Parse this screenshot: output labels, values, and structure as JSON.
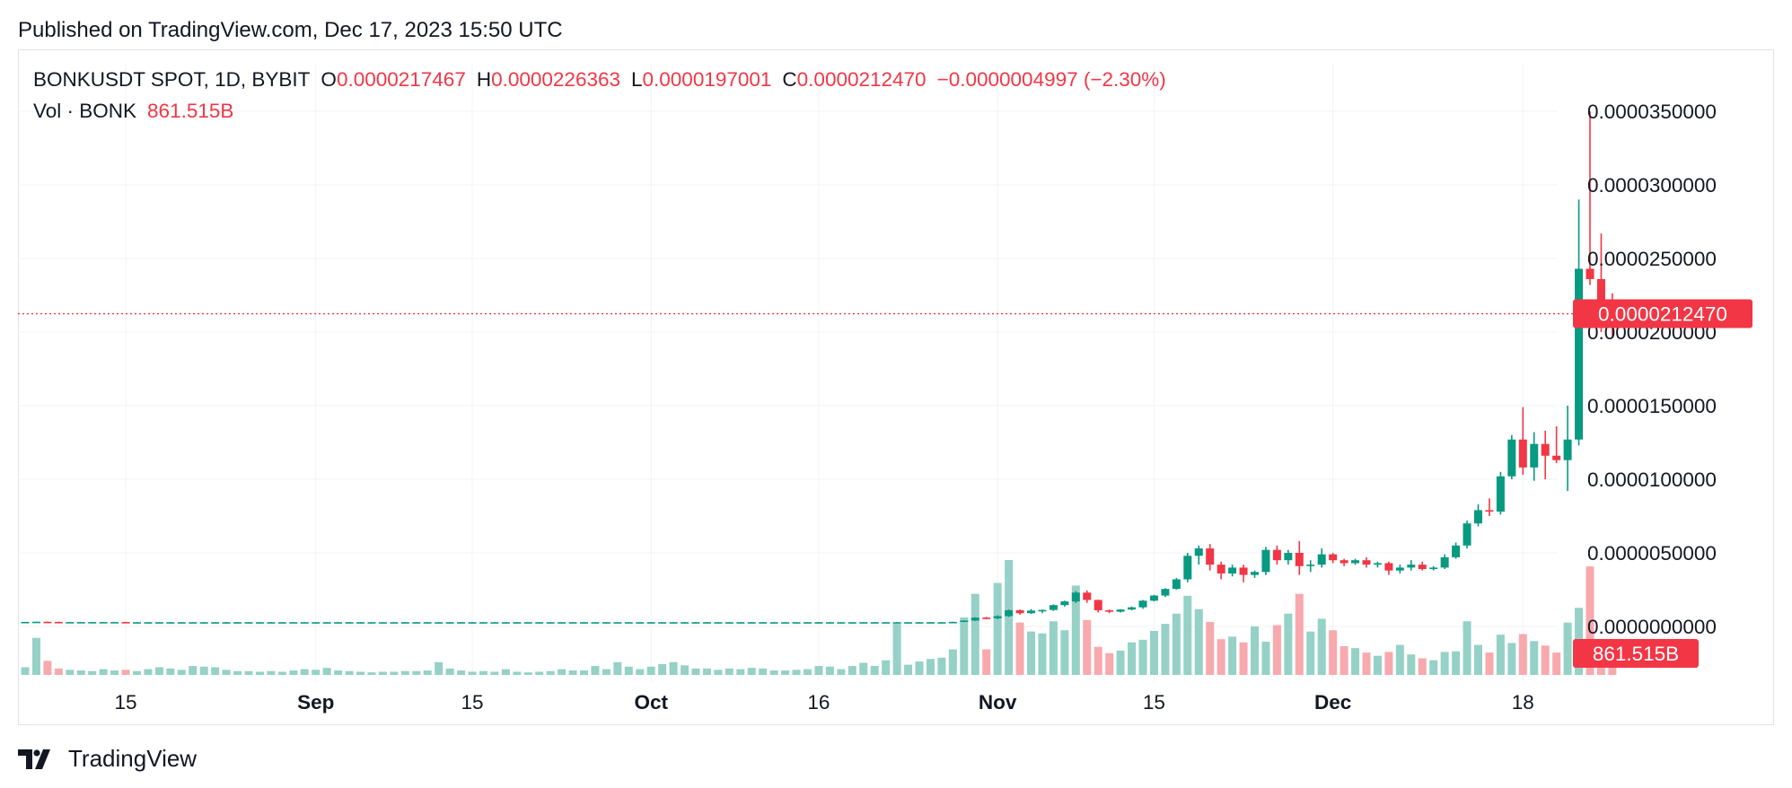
{
  "header": {
    "published": "Published on TradingView.com, Dec 17, 2023 15:50 UTC"
  },
  "legend": {
    "symbol": "BONKUSDT SPOT, 1D, BYBIT",
    "open_label": "O",
    "open": "0.0000217467",
    "high_label": "H",
    "high": "0.0000226363",
    "low_label": "L",
    "low": "0.0000197001",
    "close_label": "C",
    "close": "0.0000212470",
    "change": "−0.0000004997 (−2.30%)",
    "vol_label": "Vol · BONK",
    "vol": "861.515B"
  },
  "footer": {
    "brand": "TradingView"
  },
  "colors": {
    "up": "#089981",
    "down": "#f23645",
    "up_vol": "#95d1c6",
    "down_vol": "#f8a9ae",
    "grid": "#f0f3fa",
    "axis_text": "#131722"
  },
  "chart_data": {
    "type": "candlestick",
    "x_axis_ticks": [
      {
        "label": "15",
        "date": "2023-08-15",
        "bold": false
      },
      {
        "label": "Sep",
        "date": "2023-09-01",
        "bold": true
      },
      {
        "label": "15",
        "date": "2023-09-15",
        "bold": false
      },
      {
        "label": "Oct",
        "date": "2023-10-01",
        "bold": true
      },
      {
        "label": "16",
        "date": "2023-10-16",
        "bold": false
      },
      {
        "label": "Nov",
        "date": "2023-11-01",
        "bold": true
      },
      {
        "label": "15",
        "date": "2023-11-15",
        "bold": false
      },
      {
        "label": "Dec",
        "date": "2023-12-01",
        "bold": true
      },
      {
        "label": "18",
        "date": "2023-12-18",
        "bold": false
      }
    ],
    "y_axis_ticks": [
      3.5e-05,
      3e-05,
      2.5e-05,
      2e-05,
      1.5e-05,
      1e-05,
      5e-06,
      0.0
    ],
    "y_axis_labels": [
      "0.0000350000",
      "0.0000300000",
      "0.0000250000",
      "0.0000200000",
      "0.0000150000",
      "0.0000100000",
      "0.0000050000",
      "0.0000000000"
    ],
    "ylim": [
      -3e-07,
      3.5e-05
    ],
    "last_price": 2.1247e-05,
    "last_price_label": "0.0000212470",
    "last_volume_label": "861.515B",
    "start_date": "2023-08-06",
    "candles": [
      {
        "o": 3e-07,
        "h": 3.1e-07,
        "l": 2.9e-07,
        "c": 3.1e-07,
        "v": 12
      },
      {
        "o": 3.1e-07,
        "h": 3.2e-07,
        "l": 3e-07,
        "c": 3.2e-07,
        "v": 58
      },
      {
        "o": 3.2e-07,
        "h": 3.3e-07,
        "l": 3e-07,
        "c": 3.1e-07,
        "v": 22
      },
      {
        "o": 3.1e-07,
        "h": 3.2e-07,
        "l": 2.9e-07,
        "c": 3e-07,
        "v": 10
      },
      {
        "o": 3e-07,
        "h": 3.1e-07,
        "l": 2.9e-07,
        "c": 3e-07,
        "v": 8
      },
      {
        "o": 3e-07,
        "h": 3.1e-07,
        "l": 2.9e-07,
        "c": 3e-07,
        "v": 7
      },
      {
        "o": 3e-07,
        "h": 3.1e-07,
        "l": 2.9e-07,
        "c": 3e-07,
        "v": 6
      },
      {
        "o": 3e-07,
        "h": 3.1e-07,
        "l": 2.9e-07,
        "c": 3e-07,
        "v": 9
      },
      {
        "o": 3e-07,
        "h": 3.1e-07,
        "l": 2.9e-07,
        "c": 3e-07,
        "v": 7
      },
      {
        "o": 3e-07,
        "h": 3.1e-07,
        "l": 2.8e-07,
        "c": 2.9e-07,
        "v": 8
      },
      {
        "o": 2.9e-07,
        "h": 3e-07,
        "l": 2.8e-07,
        "c": 2.9e-07,
        "v": 6
      },
      {
        "o": 2.9e-07,
        "h": 3e-07,
        "l": 2.8e-07,
        "c": 2.9e-07,
        "v": 9
      },
      {
        "o": 2.9e-07,
        "h": 3e-07,
        "l": 2.8e-07,
        "c": 2.9e-07,
        "v": 12
      },
      {
        "o": 2.9e-07,
        "h": 3e-07,
        "l": 2.8e-07,
        "c": 2.9e-07,
        "v": 10
      },
      {
        "o": 2.9e-07,
        "h": 3e-07,
        "l": 2.8e-07,
        "c": 2.9e-07,
        "v": 8
      },
      {
        "o": 2.9e-07,
        "h": 3e-07,
        "l": 2.8e-07,
        "c": 2.9e-07,
        "v": 14
      },
      {
        "o": 2.9e-07,
        "h": 3e-07,
        "l": 2.8e-07,
        "c": 2.9e-07,
        "v": 13
      },
      {
        "o": 2.9e-07,
        "h": 3e-07,
        "l": 2.8e-07,
        "c": 2.9e-07,
        "v": 12
      },
      {
        "o": 2.9e-07,
        "h": 3e-07,
        "l": 2.8e-07,
        "c": 2.9e-07,
        "v": 8
      },
      {
        "o": 2.9e-07,
        "h": 3e-07,
        "l": 2.8e-07,
        "c": 2.9e-07,
        "v": 6
      },
      {
        "o": 2.9e-07,
        "h": 3e-07,
        "l": 2.8e-07,
        "c": 2.9e-07,
        "v": 6
      },
      {
        "o": 2.9e-07,
        "h": 3e-07,
        "l": 2.8e-07,
        "c": 2.9e-07,
        "v": 5
      },
      {
        "o": 2.9e-07,
        "h": 3e-07,
        "l": 2.8e-07,
        "c": 2.9e-07,
        "v": 6
      },
      {
        "o": 2.9e-07,
        "h": 3e-07,
        "l": 2.8e-07,
        "c": 2.9e-07,
        "v": 5
      },
      {
        "o": 2.9e-07,
        "h": 3e-07,
        "l": 2.8e-07,
        "c": 2.9e-07,
        "v": 7
      },
      {
        "o": 2.9e-07,
        "h": 3e-07,
        "l": 2.8e-07,
        "c": 2.9e-07,
        "v": 9
      },
      {
        "o": 2.9e-07,
        "h": 3e-07,
        "l": 2.8e-07,
        "c": 2.9e-07,
        "v": 8
      },
      {
        "o": 2.9e-07,
        "h": 3e-07,
        "l": 2.8e-07,
        "c": 2.9e-07,
        "v": 11
      },
      {
        "o": 2.9e-07,
        "h": 3e-07,
        "l": 2.8e-07,
        "c": 2.9e-07,
        "v": 7
      },
      {
        "o": 2.9e-07,
        "h": 3e-07,
        "l": 2.8e-07,
        "c": 2.9e-07,
        "v": 6
      },
      {
        "o": 2.9e-07,
        "h": 3e-07,
        "l": 2.8e-07,
        "c": 2.9e-07,
        "v": 5
      },
      {
        "o": 2.9e-07,
        "h": 3e-07,
        "l": 2.8e-07,
        "c": 2.9e-07,
        "v": 4
      },
      {
        "o": 2.9e-07,
        "h": 3e-07,
        "l": 2.8e-07,
        "c": 2.9e-07,
        "v": 5
      },
      {
        "o": 2.9e-07,
        "h": 3e-07,
        "l": 2.8e-07,
        "c": 2.9e-07,
        "v": 5
      },
      {
        "o": 2.9e-07,
        "h": 3e-07,
        "l": 2.8e-07,
        "c": 2.9e-07,
        "v": 6
      },
      {
        "o": 2.9e-07,
        "h": 3e-07,
        "l": 2.8e-07,
        "c": 2.9e-07,
        "v": 6
      },
      {
        "o": 2.9e-07,
        "h": 3e-07,
        "l": 2.8e-07,
        "c": 2.9e-07,
        "v": 7
      },
      {
        "o": 2.9e-07,
        "h": 3e-07,
        "l": 2.8e-07,
        "c": 2.9e-07,
        "v": 20
      },
      {
        "o": 2.9e-07,
        "h": 3e-07,
        "l": 2.8e-07,
        "c": 2.9e-07,
        "v": 10
      },
      {
        "o": 2.9e-07,
        "h": 3e-07,
        "l": 2.8e-07,
        "c": 2.9e-07,
        "v": 7
      },
      {
        "o": 2.9e-07,
        "h": 3e-07,
        "l": 2.8e-07,
        "c": 2.9e-07,
        "v": 5
      },
      {
        "o": 2.9e-07,
        "h": 3e-07,
        "l": 2.8e-07,
        "c": 2.9e-07,
        "v": 6
      },
      {
        "o": 2.9e-07,
        "h": 3e-07,
        "l": 2.8e-07,
        "c": 2.9e-07,
        "v": 5
      },
      {
        "o": 2.9e-07,
        "h": 3e-07,
        "l": 2.8e-07,
        "c": 2.9e-07,
        "v": 9
      },
      {
        "o": 2.9e-07,
        "h": 3e-07,
        "l": 2.8e-07,
        "c": 2.9e-07,
        "v": 5
      },
      {
        "o": 2.9e-07,
        "h": 3e-07,
        "l": 2.8e-07,
        "c": 2.9e-07,
        "v": 4
      },
      {
        "o": 2.9e-07,
        "h": 3e-07,
        "l": 2.8e-07,
        "c": 2.9e-07,
        "v": 5
      },
      {
        "o": 2.9e-07,
        "h": 3e-07,
        "l": 2.8e-07,
        "c": 2.9e-07,
        "v": 6
      },
      {
        "o": 2.9e-07,
        "h": 3e-07,
        "l": 2.8e-07,
        "c": 2.9e-07,
        "v": 9
      },
      {
        "o": 2.9e-07,
        "h": 3e-07,
        "l": 2.8e-07,
        "c": 2.9e-07,
        "v": 7
      },
      {
        "o": 2.9e-07,
        "h": 3e-07,
        "l": 2.8e-07,
        "c": 2.9e-07,
        "v": 7
      },
      {
        "o": 2.9e-07,
        "h": 3e-07,
        "l": 2.8e-07,
        "c": 2.9e-07,
        "v": 14
      },
      {
        "o": 2.9e-07,
        "h": 3e-07,
        "l": 2.8e-07,
        "c": 2.9e-07,
        "v": 9
      },
      {
        "o": 2.9e-07,
        "h": 3e-07,
        "l": 2.8e-07,
        "c": 2.9e-07,
        "v": 20
      },
      {
        "o": 2.9e-07,
        "h": 3e-07,
        "l": 2.8e-07,
        "c": 2.9e-07,
        "v": 13
      },
      {
        "o": 2.9e-07,
        "h": 3e-07,
        "l": 2.8e-07,
        "c": 2.9e-07,
        "v": 9
      },
      {
        "o": 2.9e-07,
        "h": 3e-07,
        "l": 2.8e-07,
        "c": 2.9e-07,
        "v": 13
      },
      {
        "o": 2.9e-07,
        "h": 3e-07,
        "l": 2.8e-07,
        "c": 2.9e-07,
        "v": 17
      },
      {
        "o": 2.9e-07,
        "h": 3e-07,
        "l": 2.8e-07,
        "c": 2.9e-07,
        "v": 20
      },
      {
        "o": 2.9e-07,
        "h": 3e-07,
        "l": 2.8e-07,
        "c": 2.9e-07,
        "v": 15
      },
      {
        "o": 2.9e-07,
        "h": 3e-07,
        "l": 2.8e-07,
        "c": 2.9e-07,
        "v": 10
      },
      {
        "o": 2.9e-07,
        "h": 3e-07,
        "l": 2.8e-07,
        "c": 2.9e-07,
        "v": 10
      },
      {
        "o": 2.9e-07,
        "h": 3e-07,
        "l": 2.8e-07,
        "c": 2.9e-07,
        "v": 8
      },
      {
        "o": 2.9e-07,
        "h": 3e-07,
        "l": 2.8e-07,
        "c": 2.9e-07,
        "v": 10
      },
      {
        "o": 2.9e-07,
        "h": 3e-07,
        "l": 2.8e-07,
        "c": 2.9e-07,
        "v": 9
      },
      {
        "o": 2.9e-07,
        "h": 3e-07,
        "l": 2.8e-07,
        "c": 2.9e-07,
        "v": 11
      },
      {
        "o": 2.9e-07,
        "h": 3e-07,
        "l": 2.8e-07,
        "c": 2.9e-07,
        "v": 10
      },
      {
        "o": 2.9e-07,
        "h": 3e-07,
        "l": 2.8e-07,
        "c": 2.9e-07,
        "v": 7
      },
      {
        "o": 2.9e-07,
        "h": 3e-07,
        "l": 2.8e-07,
        "c": 2.9e-07,
        "v": 7
      },
      {
        "o": 2.9e-07,
        "h": 3e-07,
        "l": 2.8e-07,
        "c": 2.9e-07,
        "v": 8
      },
      {
        "o": 2.9e-07,
        "h": 3e-07,
        "l": 2.8e-07,
        "c": 2.9e-07,
        "v": 9
      },
      {
        "o": 2.9e-07,
        "h": 3e-07,
        "l": 2.8e-07,
        "c": 2.9e-07,
        "v": 14
      },
      {
        "o": 2.9e-07,
        "h": 3e-07,
        "l": 2.8e-07,
        "c": 2.9e-07,
        "v": 13
      },
      {
        "o": 2.9e-07,
        "h": 3e-07,
        "l": 2.8e-07,
        "c": 2.9e-07,
        "v": 9
      },
      {
        "o": 2.9e-07,
        "h": 3e-07,
        "l": 2.8e-07,
        "c": 2.9e-07,
        "v": 14
      },
      {
        "o": 2.9e-07,
        "h": 3e-07,
        "l": 2.8e-07,
        "c": 2.9e-07,
        "v": 19
      },
      {
        "o": 2.9e-07,
        "h": 3e-07,
        "l": 2.8e-07,
        "c": 2.9e-07,
        "v": 14
      },
      {
        "o": 2.9e-07,
        "h": 3e-07,
        "l": 2.8e-07,
        "c": 2.9e-07,
        "v": 23
      },
      {
        "o": 2.9e-07,
        "h": 3e-07,
        "l": 2.8e-07,
        "c": 2.9e-07,
        "v": 80
      },
      {
        "o": 2.9e-07,
        "h": 3e-07,
        "l": 2.8e-07,
        "c": 2.9e-07,
        "v": 16
      },
      {
        "o": 2.9e-07,
        "h": 3e-07,
        "l": 2.8e-07,
        "c": 2.9e-07,
        "v": 21
      },
      {
        "o": 2.9e-07,
        "h": 3e-07,
        "l": 2.8e-07,
        "c": 2.9e-07,
        "v": 25
      },
      {
        "o": 2.9e-07,
        "h": 3e-07,
        "l": 2.8e-07,
        "c": 2.9e-07,
        "v": 27
      },
      {
        "o": 2.9e-07,
        "h": 3.2e-07,
        "l": 2.8e-07,
        "c": 3.1e-07,
        "v": 40
      },
      {
        "o": 3.1e-07,
        "h": 4.2e-07,
        "l": 3e-07,
        "c": 4e-07,
        "v": 90
      },
      {
        "o": 4e-07,
        "h": 6.2e-07,
        "l": 3.8e-07,
        "c": 6e-07,
        "v": 127
      },
      {
        "o": 6e-07,
        "h": 6.5e-07,
        "l": 5e-07,
        "c": 5.5e-07,
        "v": 40
      },
      {
        "o": 5.5e-07,
        "h": 7.5e-07,
        "l": 5e-07,
        "c": 7e-07,
        "v": 144
      },
      {
        "o": 7e-07,
        "h": 1.15e-06,
        "l": 6.5e-07,
        "c": 1.1e-06,
        "v": 180
      },
      {
        "o": 1.1e-06,
        "h": 1.15e-06,
        "l": 8e-07,
        "c": 9e-07,
        "v": 82
      },
      {
        "o": 9e-07,
        "h": 1.18e-06,
        "l": 8.5e-07,
        "c": 1.08e-06,
        "v": 68
      },
      {
        "o": 1.08e-06,
        "h": 1.15e-06,
        "l": 9e-07,
        "c": 1.12e-06,
        "v": 65
      },
      {
        "o": 1.12e-06,
        "h": 1.5e-06,
        "l": 1.05e-06,
        "c": 1.45e-06,
        "v": 84
      },
      {
        "o": 1.45e-06,
        "h": 1.75e-06,
        "l": 1.35e-06,
        "c": 1.7e-06,
        "v": 70
      },
      {
        "o": 1.7e-06,
        "h": 2.4e-06,
        "l": 1.6e-06,
        "c": 2.3e-06,
        "v": 140
      },
      {
        "o": 2.3e-06,
        "h": 2.45e-06,
        "l": 1.6e-06,
        "c": 1.8e-06,
        "v": 86
      },
      {
        "o": 1.8e-06,
        "h": 1.82e-06,
        "l": 9.5e-07,
        "c": 1.1e-06,
        "v": 44
      },
      {
        "o": 1.1e-06,
        "h": 1.15e-06,
        "l": 9e-07,
        "c": 1e-06,
        "v": 34
      },
      {
        "o": 1e-06,
        "h": 1.18e-06,
        "l": 9.5e-07,
        "c": 1.15e-06,
        "v": 38
      },
      {
        "o": 1.15e-06,
        "h": 1.35e-06,
        "l": 1.1e-06,
        "c": 1.3e-06,
        "v": 51
      },
      {
        "o": 1.3e-06,
        "h": 1.8e-06,
        "l": 1.2e-06,
        "c": 1.75e-06,
        "v": 55
      },
      {
        "o": 1.75e-06,
        "h": 2.15e-06,
        "l": 1.7e-06,
        "c": 2.1e-06,
        "v": 69
      },
      {
        "o": 2.1e-06,
        "h": 2.6e-06,
        "l": 2e-06,
        "c": 2.55e-06,
        "v": 80
      },
      {
        "o": 2.55e-06,
        "h": 3.3e-06,
        "l": 2.5e-06,
        "c": 3.2e-06,
        "v": 96
      },
      {
        "o": 3.2e-06,
        "h": 5e-06,
        "l": 3e-06,
        "c": 4.8e-06,
        "v": 124
      },
      {
        "o": 4.8e-06,
        "h": 5.5e-06,
        "l": 4.2e-06,
        "c": 5.3e-06,
        "v": 103
      },
      {
        "o": 5.3e-06,
        "h": 5.6e-06,
        "l": 3.8e-06,
        "c": 4.2e-06,
        "v": 83
      },
      {
        "o": 4.2e-06,
        "h": 4.4e-06,
        "l": 3.2e-06,
        "c": 3.6e-06,
        "v": 56
      },
      {
        "o": 3.6e-06,
        "h": 4.2e-06,
        "l": 3.4e-06,
        "c": 4e-06,
        "v": 60
      },
      {
        "o": 4e-06,
        "h": 4.2e-06,
        "l": 3e-06,
        "c": 3.5e-06,
        "v": 51
      },
      {
        "o": 3.5e-06,
        "h": 3.8e-06,
        "l": 3.3e-06,
        "c": 3.7e-06,
        "v": 76
      },
      {
        "o": 3.7e-06,
        "h": 5.4e-06,
        "l": 3.5e-06,
        "c": 5.2e-06,
        "v": 52
      },
      {
        "o": 5.2e-06,
        "h": 5.5e-06,
        "l": 4.2e-06,
        "c": 4.5e-06,
        "v": 78
      },
      {
        "o": 4.5e-06,
        "h": 5.2e-06,
        "l": 4.2e-06,
        "c": 5e-06,
        "v": 96
      },
      {
        "o": 5e-06,
        "h": 5.8e-06,
        "l": 3.5e-06,
        "c": 4.1e-06,
        "v": 127
      },
      {
        "o": 4.1e-06,
        "h": 4.5e-06,
        "l": 3.7e-06,
        "c": 4.2e-06,
        "v": 68
      },
      {
        "o": 4.2e-06,
        "h": 5.3e-06,
        "l": 4e-06,
        "c": 4.9e-06,
        "v": 88
      },
      {
        "o": 4.9e-06,
        "h": 5e-06,
        "l": 4.3e-06,
        "c": 4.5e-06,
        "v": 70
      },
      {
        "o": 4.5e-06,
        "h": 4.6e-06,
        "l": 4.1e-06,
        "c": 4.3e-06,
        "v": 45
      },
      {
        "o": 4.3e-06,
        "h": 4.6e-06,
        "l": 4.2e-06,
        "c": 4.5e-06,
        "v": 42
      },
      {
        "o": 4.5e-06,
        "h": 4.7e-06,
        "l": 4e-06,
        "c": 4.2e-06,
        "v": 35
      },
      {
        "o": 4.2e-06,
        "h": 4.4e-06,
        "l": 4e-06,
        "c": 4.3e-06,
        "v": 30
      },
      {
        "o": 4.3e-06,
        "h": 4.4e-06,
        "l": 3.5e-06,
        "c": 3.8e-06,
        "v": 36
      },
      {
        "o": 3.8e-06,
        "h": 4.2e-06,
        "l": 3.6e-06,
        "c": 4e-06,
        "v": 47
      },
      {
        "o": 4e-06,
        "h": 4.5e-06,
        "l": 3.8e-06,
        "c": 4.2e-06,
        "v": 32
      },
      {
        "o": 4.2e-06,
        "h": 4.4e-06,
        "l": 3.8e-06,
        "c": 3.9e-06,
        "v": 26
      },
      {
        "o": 3.9e-06,
        "h": 4.1e-06,
        "l": 3.8e-06,
        "c": 4e-06,
        "v": 23
      },
      {
        "o": 4e-06,
        "h": 4.9e-06,
        "l": 3.9e-06,
        "c": 4.7e-06,
        "v": 36
      },
      {
        "o": 4.7e-06,
        "h": 5.7e-06,
        "l": 4.6e-06,
        "c": 5.5e-06,
        "v": 37
      },
      {
        "o": 5.5e-06,
        "h": 7.2e-06,
        "l": 5.3e-06,
        "c": 7e-06,
        "v": 84
      },
      {
        "o": 7e-06,
        "h": 8.3e-06,
        "l": 6.8e-06,
        "c": 7.9e-06,
        "v": 47
      },
      {
        "o": 7.9e-06,
        "h": 8.7e-06,
        "l": 7.5e-06,
        "c": 7.8e-06,
        "v": 35
      },
      {
        "o": 7.8e-06,
        "h": 1.05e-05,
        "l": 7.6e-06,
        "c": 1.02e-05,
        "v": 63
      },
      {
        "o": 1.02e-05,
        "h": 1.3e-05,
        "l": 1e-05,
        "c": 1.27e-05,
        "v": 50
      },
      {
        "o": 1.27e-05,
        "h": 1.49e-05,
        "l": 1.03e-05,
        "c": 1.08e-05,
        "v": 64
      },
      {
        "o": 1.08e-05,
        "h": 1.32e-05,
        "l": 9.9e-06,
        "c": 1.24e-05,
        "v": 53
      },
      {
        "o": 1.24e-05,
        "h": 1.33e-05,
        "l": 1e-05,
        "c": 1.16e-05,
        "v": 46
      },
      {
        "o": 1.16e-05,
        "h": 1.36e-05,
        "l": 1.11e-05,
        "c": 1.13e-05,
        "v": 35
      },
      {
        "o": 1.13e-05,
        "h": 1.5e-05,
        "l": 9.2e-06,
        "c": 1.27e-05,
        "v": 82
      },
      {
        "o": 1.27e-05,
        "h": 2.9e-05,
        "l": 1.23e-05,
        "c": 2.43e-05,
        "v": 105
      },
      {
        "o": 2.43e-05,
        "h": 3.5e-05,
        "l": 2.32e-05,
        "c": 2.36e-05,
        "v": 170
      },
      {
        "o": 2.36e-05,
        "h": 2.67e-05,
        "l": 2e-05,
        "c": 2.17e-05,
        "v": 55
      },
      {
        "o": 2.175e-05,
        "h": 2.264e-05,
        "l": 1.97e-05,
        "c": 2.125e-05,
        "v": 30
      }
    ]
  }
}
